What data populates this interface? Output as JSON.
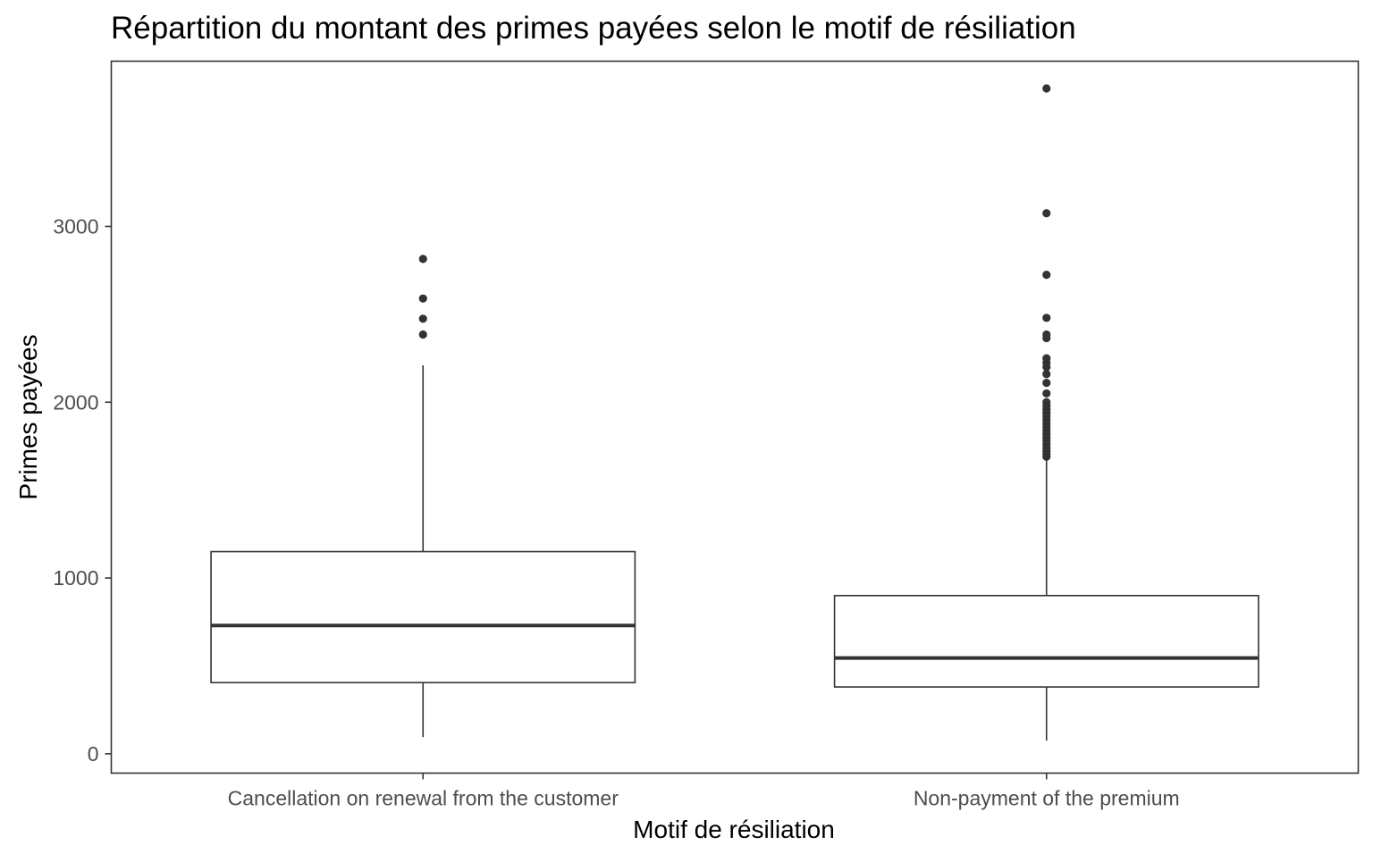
{
  "chart_data": {
    "type": "box",
    "title": "Répartition du montant des primes payées selon le motif de résiliation",
    "xlabel": "Motif de résiliation",
    "ylabel": "Primes payées",
    "ylim": [
      -110,
      3940
    ],
    "y_ticks": [
      0,
      1000,
      2000,
      3000
    ],
    "y_tick_labels": [
      "0",
      "1000",
      "2000",
      "3000"
    ],
    "grid": false,
    "categories": [
      "Cancellation on renewal from the customer",
      "Non-payment of the premium"
    ],
    "boxes": [
      {
        "category": "Cancellation on renewal from the customer",
        "whisker_low": 95,
        "q1": 405,
        "median": 730,
        "q3": 1150,
        "whisker_high": 2210,
        "outliers": [
          2385,
          2475,
          2590,
          2815
        ]
      },
      {
        "category": "Non-payment of the premium",
        "whisker_low": 75,
        "q1": 380,
        "median": 545,
        "q3": 900,
        "whisker_high": 1680,
        "outliers": [
          1690,
          1705,
          1720,
          1740,
          1760,
          1780,
          1800,
          1820,
          1840,
          1860,
          1880,
          1900,
          1920,
          1940,
          1960,
          1980,
          2000,
          2050,
          2110,
          2160,
          2200,
          2225,
          2250,
          2365,
          2385,
          2480,
          2725,
          3075,
          3785
        ]
      }
    ],
    "colors": {
      "box_stroke": "#333333",
      "panel_border": "#333333",
      "outlier": "#333333",
      "tick_label": "#4d4d4d"
    }
  }
}
